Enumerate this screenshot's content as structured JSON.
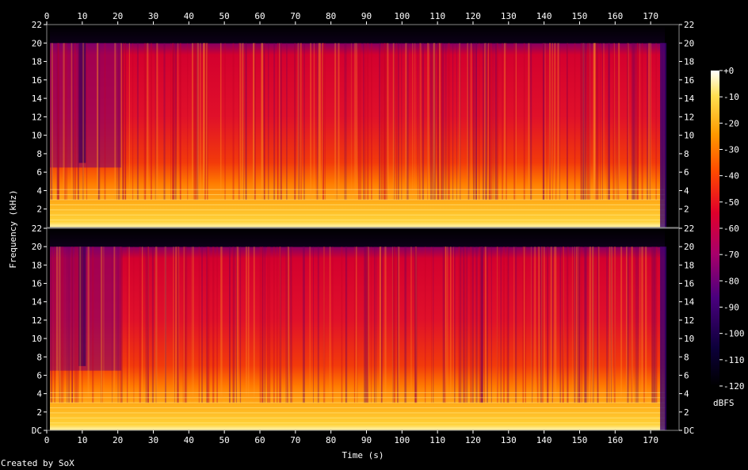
{
  "chart_data": {
    "type": "heatmap",
    "xlabel": "Time (s)",
    "ylabel": "Frequency (kHz)",
    "colorbar_label": "dBFS",
    "x_range": [
      0,
      178
    ],
    "y_range": [
      0,
      22
    ],
    "z_range": [
      -120,
      0
    ],
    "x_ticks": [
      "0",
      "10",
      "20",
      "30",
      "40",
      "50",
      "60",
      "70",
      "80",
      "90",
      "100",
      "110",
      "120",
      "130",
      "140",
      "150",
      "160",
      "170"
    ],
    "y_ticks_top": [
      "2",
      "4",
      "6",
      "8",
      "10",
      "12",
      "14",
      "16",
      "18",
      "20",
      "22"
    ],
    "y_ticks_bottom": [
      "DC",
      "2",
      "4",
      "6",
      "8",
      "10",
      "12",
      "14",
      "16",
      "18",
      "20",
      "22"
    ],
    "colorbar_ticks": [
      "+0",
      "-10",
      "-20",
      "-30",
      "-40",
      "-50",
      "-60",
      "-70",
      "-80",
      "-90",
      "-100",
      "-110",
      "-120"
    ],
    "channels": [
      {
        "channel": 1,
        "content_upper_khz": 20,
        "signal_end_s": 174
      },
      {
        "channel": 2,
        "content_upper_khz": 20,
        "signal_end_s": 174
      }
    ]
  },
  "footer": {
    "credit": "Created by SoX"
  },
  "colors": {
    "background": "#000000",
    "low": "#000000",
    "mid_low": "#3c007a",
    "mid": "#d4002a",
    "mid_high": "#ff6a00",
    "high": "#ffd23a",
    "max": "#ffffff"
  }
}
